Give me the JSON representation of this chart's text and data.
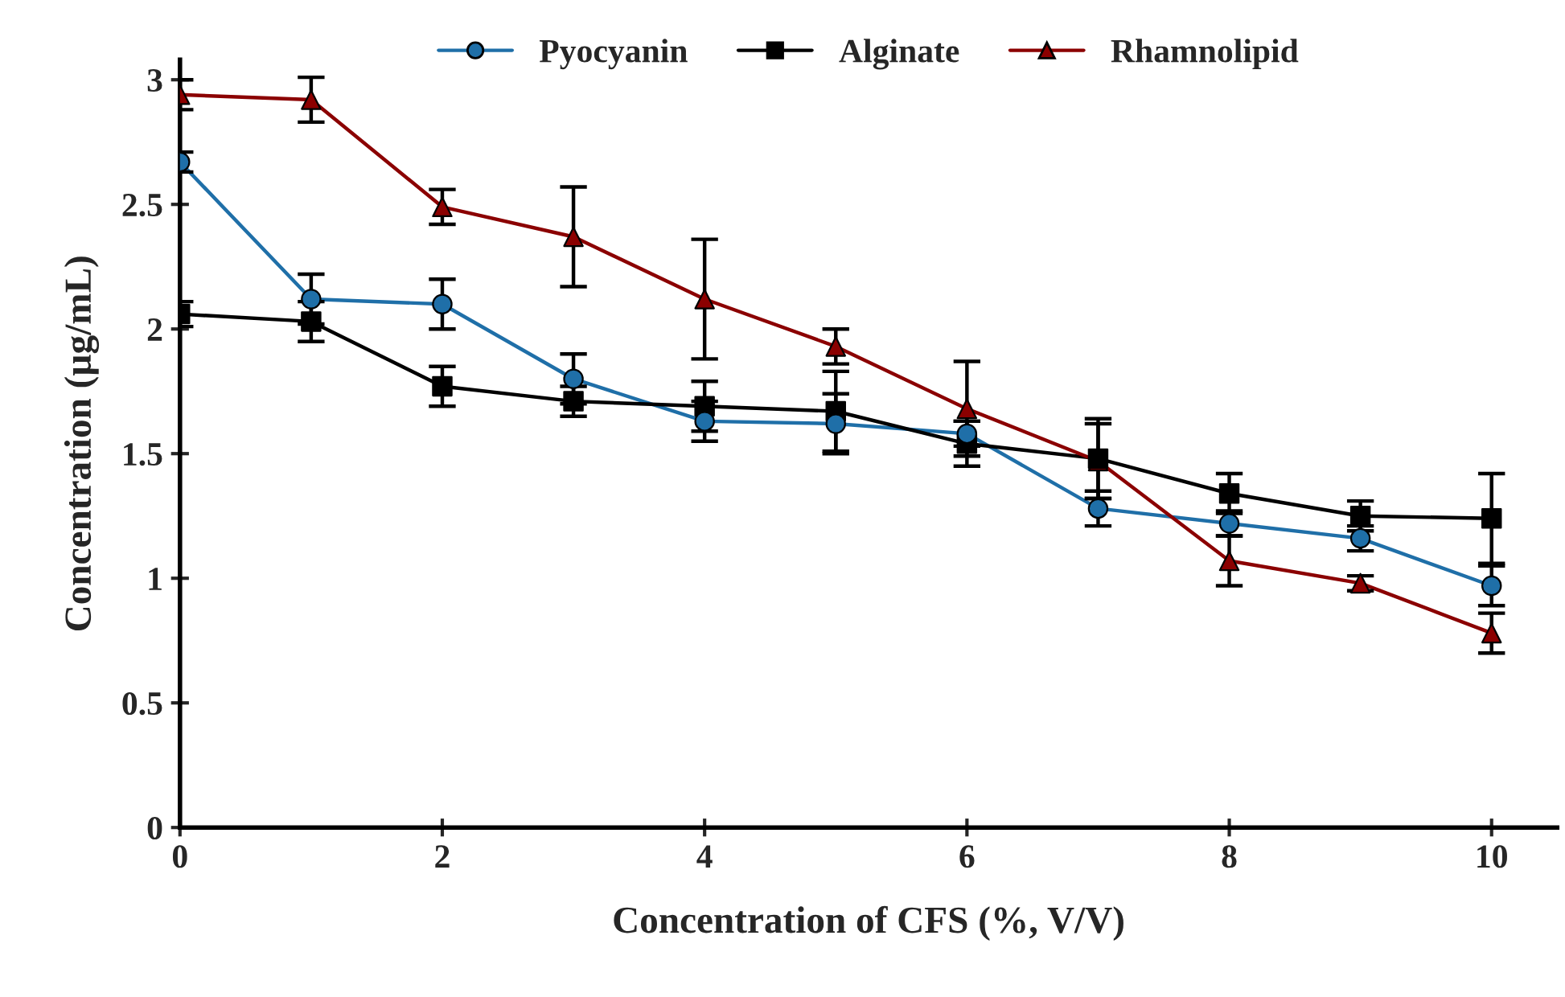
{
  "chart_data": {
    "type": "line",
    "xlabel": "Concentration of CFS (%, V/V)",
    "ylabel": "Concentration (µg/mL)",
    "x": [
      0,
      1,
      2,
      3,
      4,
      5,
      6,
      7,
      8,
      9,
      10
    ],
    "series": [
      {
        "name": "Pyocyanin",
        "color": "#1f6fa8",
        "marker": "circle",
        "values": [
          2.67,
          2.12,
          2.1,
          1.8,
          1.63,
          1.62,
          1.58,
          1.28,
          1.22,
          1.16,
          0.97
        ],
        "errors": [
          0.04,
          0.1,
          0.1,
          0.1,
          0.08,
          0.12,
          0.05,
          0.07,
          0.05,
          0.05,
          0.08
        ]
      },
      {
        "name": "Alginate",
        "color": "#000000",
        "marker": "square",
        "values": [
          2.06,
          2.03,
          1.77,
          1.71,
          1.69,
          1.67,
          1.54,
          1.48,
          1.34,
          1.25,
          1.24
        ],
        "errors": [
          0.05,
          0.08,
          0.08,
          0.06,
          0.1,
          0.16,
          0.09,
          0.16,
          0.08,
          0.06,
          0.18
        ]
      },
      {
        "name": "Rhamnolipid",
        "color": "#8b0000",
        "marker": "triangle",
        "values": [
          2.94,
          2.92,
          2.49,
          2.37,
          2.12,
          1.93,
          1.68,
          1.47,
          1.07,
          0.98,
          0.78
        ],
        "errors": [
          0.06,
          0.09,
          0.07,
          0.2,
          0.24,
          0.07,
          0.19,
          0.15,
          0.1,
          0.03,
          0.08
        ]
      }
    ],
    "xlim": [
      0,
      10.5
    ],
    "xticks": [
      0,
      2,
      4,
      6,
      8,
      10
    ],
    "ylim": [
      0,
      3.08
    ],
    "yticks": [
      0,
      0.5,
      1,
      1.5,
      2,
      2.5,
      3
    ],
    "grid": false,
    "legend": "top",
    "line_style": "solid"
  }
}
